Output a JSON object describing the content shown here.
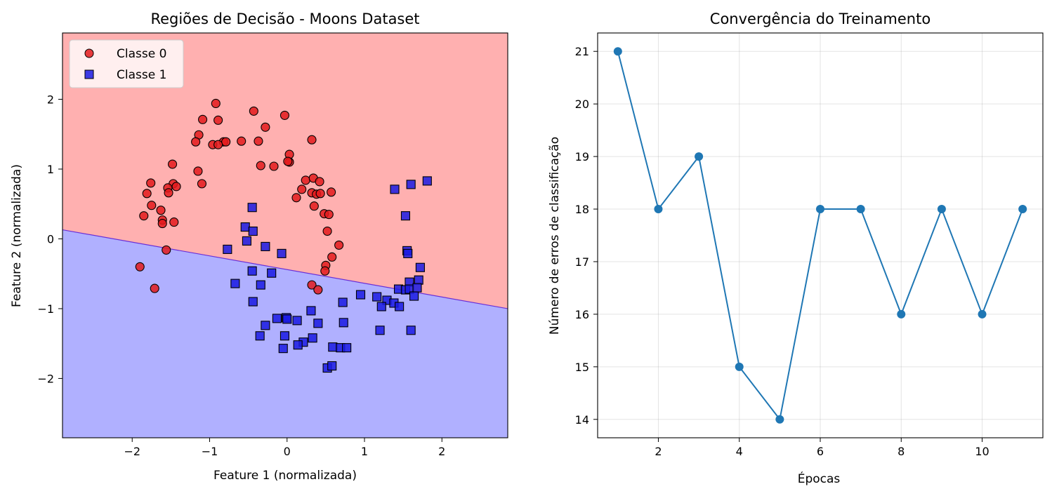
{
  "chart_data": [
    {
      "type": "scatter",
      "title": "Regiões de Decisão - Moons Dataset",
      "xlabel": "Feature 1 (normalizada)",
      "ylabel": "Feature 2 (normalizada)",
      "xlim": [
        -2.9,
        2.85
      ],
      "ylim": [
        -2.85,
        2.95
      ],
      "xticks": [
        -2,
        -1,
        0,
        1,
        2
      ],
      "yticks": [
        -2,
        -1,
        0,
        1,
        2
      ],
      "grid": false,
      "legend_position": "top-left",
      "decision_boundary": {
        "x": [
          -2.9,
          2.85
        ],
        "y": [
          0.13,
          -1.0
        ]
      },
      "region_colors": {
        "class0": "#ffb0b0",
        "class1": "#b0b0ff"
      },
      "series": [
        {
          "name": "Classe 0",
          "marker": "circle",
          "color": "#e31a1c",
          "points": [
            [
              -0.92,
              1.94
            ],
            [
              -0.43,
              1.83
            ],
            [
              -0.03,
              1.77
            ],
            [
              -1.09,
              1.71
            ],
            [
              -0.89,
              1.7
            ],
            [
              -0.28,
              1.6
            ],
            [
              -1.14,
              1.49
            ],
            [
              -1.18,
              1.39
            ],
            [
              -0.82,
              1.39
            ],
            [
              -0.79,
              1.39
            ],
            [
              -0.59,
              1.4
            ],
            [
              -0.37,
              1.4
            ],
            [
              0.32,
              1.42
            ],
            [
              -0.96,
              1.35
            ],
            [
              -0.89,
              1.35
            ],
            [
              0.03,
              1.21
            ],
            [
              -1.48,
              1.07
            ],
            [
              -0.34,
              1.05
            ],
            [
              -0.17,
              1.04
            ],
            [
              0.03,
              1.1
            ],
            [
              0.01,
              1.11
            ],
            [
              -1.15,
              0.97
            ],
            [
              0.24,
              0.84
            ],
            [
              0.34,
              0.87
            ],
            [
              0.42,
              0.82
            ],
            [
              -1.76,
              0.8
            ],
            [
              -1.47,
              0.79
            ],
            [
              -1.1,
              0.79
            ],
            [
              -1.43,
              0.75
            ],
            [
              -1.54,
              0.73
            ],
            [
              0.19,
              0.71
            ],
            [
              -1.81,
              0.65
            ],
            [
              -1.53,
              0.66
            ],
            [
              0.32,
              0.66
            ],
            [
              0.38,
              0.64
            ],
            [
              0.43,
              0.65
            ],
            [
              0.57,
              0.67
            ],
            [
              0.12,
              0.59
            ],
            [
              -1.75,
              0.48
            ],
            [
              0.35,
              0.47
            ],
            [
              -1.63,
              0.41
            ],
            [
              0.48,
              0.36
            ],
            [
              0.54,
              0.35
            ],
            [
              -1.85,
              0.33
            ],
            [
              -1.61,
              0.27
            ],
            [
              -1.61,
              0.22
            ],
            [
              -1.46,
              0.24
            ],
            [
              0.52,
              0.11
            ],
            [
              0.67,
              -0.09
            ],
            [
              -1.56,
              -0.16
            ],
            [
              0.58,
              -0.26
            ],
            [
              -1.9,
              -0.4
            ],
            [
              0.5,
              -0.38
            ],
            [
              0.49,
              -0.46
            ],
            [
              -1.71,
              -0.71
            ],
            [
              0.32,
              -0.66
            ],
            [
              0.4,
              -0.73
            ]
          ]
        },
        {
          "name": "Classe 1",
          "marker": "square",
          "color": "#1a1ae3",
          "points": [
            [
              1.81,
              0.83
            ],
            [
              1.6,
              0.78
            ],
            [
              1.39,
              0.71
            ],
            [
              -0.45,
              0.45
            ],
            [
              1.53,
              0.33
            ],
            [
              -0.54,
              0.17
            ],
            [
              -0.44,
              0.11
            ],
            [
              -0.52,
              -0.03
            ],
            [
              -0.28,
              -0.11
            ],
            [
              -0.77,
              -0.15
            ],
            [
              1.55,
              -0.17
            ],
            [
              1.56,
              -0.21
            ],
            [
              -0.07,
              -0.21
            ],
            [
              1.72,
              -0.41
            ],
            [
              -0.45,
              -0.46
            ],
            [
              -0.2,
              -0.49
            ],
            [
              1.7,
              -0.59
            ],
            [
              1.58,
              -0.62
            ],
            [
              -0.67,
              -0.64
            ],
            [
              -0.34,
              -0.66
            ],
            [
              1.44,
              -0.72
            ],
            [
              1.53,
              -0.73
            ],
            [
              1.58,
              -0.72
            ],
            [
              1.68,
              -0.7
            ],
            [
              0.95,
              -0.8
            ],
            [
              1.64,
              -0.82
            ],
            [
              1.16,
              -0.83
            ],
            [
              1.29,
              -0.88
            ],
            [
              1.38,
              -0.92
            ],
            [
              -0.44,
              -0.9
            ],
            [
              0.72,
              -0.91
            ],
            [
              1.22,
              -0.97
            ],
            [
              1.45,
              -0.97
            ],
            [
              0.31,
              -1.03
            ],
            [
              -0.13,
              -1.14
            ],
            [
              -0.01,
              -1.13
            ],
            [
              0.0,
              -1.15
            ],
            [
              0.13,
              -1.17
            ],
            [
              0.4,
              -1.21
            ],
            [
              0.73,
              -1.2
            ],
            [
              -0.28,
              -1.24
            ],
            [
              1.2,
              -1.31
            ],
            [
              1.6,
              -1.31
            ],
            [
              -0.35,
              -1.39
            ],
            [
              -0.03,
              -1.39
            ],
            [
              0.33,
              -1.42
            ],
            [
              0.21,
              -1.48
            ],
            [
              0.14,
              -1.52
            ],
            [
              0.59,
              -1.55
            ],
            [
              0.69,
              -1.56
            ],
            [
              0.77,
              -1.56
            ],
            [
              -0.05,
              -1.57
            ],
            [
              0.52,
              -1.85
            ],
            [
              0.58,
              -1.82
            ]
          ]
        }
      ]
    },
    {
      "type": "line",
      "title": "Convergência do Treinamento",
      "xlabel": "Épocas",
      "ylabel": "Número de erros de classificação",
      "x": [
        1,
        2,
        3,
        4,
        5,
        6,
        7,
        8,
        9,
        10,
        11
      ],
      "values": [
        21,
        18,
        19,
        15,
        14,
        18,
        18,
        16,
        18,
        16,
        18
      ],
      "xlim": [
        0.5,
        11.5
      ],
      "ylim": [
        13.65,
        21.35
      ],
      "xticks": [
        2,
        4,
        6,
        8,
        10
      ],
      "yticks": [
        14,
        15,
        16,
        17,
        18,
        19,
        20,
        21
      ],
      "grid": true,
      "color": "#1f77b4"
    }
  ]
}
